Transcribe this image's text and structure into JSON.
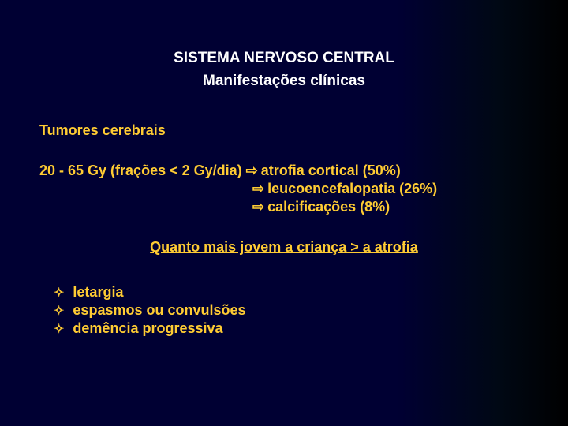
{
  "colors": {
    "background_start": "#000033",
    "background_end": "#000000",
    "title_text": "#ffffff",
    "body_text": "#ffcc33"
  },
  "typography": {
    "font_family": "Arial",
    "title_fontsize_pt": 14,
    "body_fontsize_pt": 13,
    "weight": "bold"
  },
  "title": {
    "line1": "SISTEMA NERVOSO CENTRAL",
    "line2": "Manifestações clínicas"
  },
  "section_heading": "Tumores cerebrais",
  "dose": {
    "prefix": "20 - 65 Gy (frações < 2 Gy/dia)",
    "arrow_glyph": "⇨",
    "outcomes": [
      "atrofia cortical (50%)",
      "leucoencefalopatia (26%)",
      "calcificações (8%)"
    ]
  },
  "emphasis": "Quanto mais jovem a criança > a atrofia",
  "symptoms": {
    "bullet_glyph": "✧",
    "items": [
      "letargia",
      "espasmos ou convulsões",
      "demência progressiva"
    ]
  }
}
